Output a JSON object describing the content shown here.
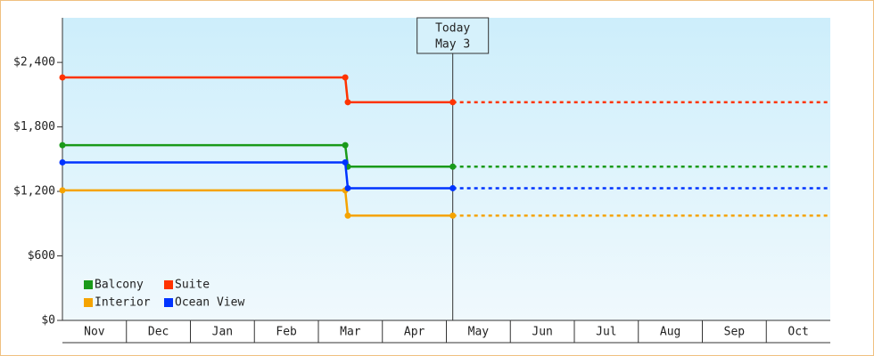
{
  "chart_data": {
    "type": "line",
    "categories": [
      "Nov",
      "Dec",
      "Jan",
      "Feb",
      "Mar",
      "Apr",
      "May",
      "Jun",
      "Jul",
      "Aug",
      "Sep",
      "Oct"
    ],
    "x": [
      0,
      4.42,
      4.46,
      6.1
    ],
    "xlim": [
      0,
      12
    ],
    "series": [
      {
        "name": "Balcony",
        "color": "#1a9a1a",
        "values": [
          1630,
          1630,
          1430,
          1430
        ]
      },
      {
        "name": "Suite",
        "color": "#ff3300",
        "values": [
          2260,
          2260,
          2030,
          2030
        ]
      },
      {
        "name": "Interior",
        "color": "#f5a300",
        "values": [
          1210,
          1210,
          975,
          975
        ]
      },
      {
        "name": "Ocean View",
        "color": "#0033ff",
        "values": [
          1470,
          1470,
          1230,
          1230
        ]
      }
    ],
    "ylim": [
      0,
      2815
    ],
    "yticks": [
      {
        "value": 0,
        "label": "$0"
      },
      {
        "value": 600,
        "label": "$600"
      },
      {
        "value": 1200,
        "label": "$1,200"
      },
      {
        "value": 1800,
        "label": "$1,800"
      },
      {
        "value": 2400,
        "label": "$2,400"
      }
    ],
    "annotation": {
      "x": 6.1,
      "lines": [
        "Today",
        "May 3"
      ]
    },
    "forecast_dashed": true,
    "legend": "lower left"
  }
}
